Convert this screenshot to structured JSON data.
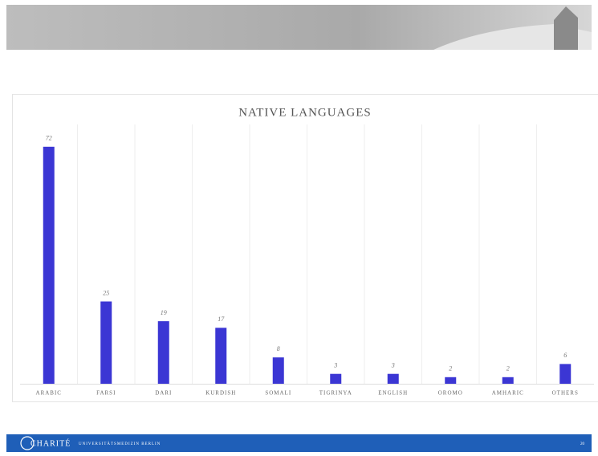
{
  "chart_data": {
    "type": "bar",
    "title": "NATIVE LANGUAGES",
    "categories": [
      "ARABIC",
      "FARSI",
      "DARI",
      "KURDISH",
      "SOMALI",
      "TIGRINYA",
      "ENGLISH",
      "OROMO",
      "AMHARIC",
      "OTHERS"
    ],
    "values": [
      72,
      25,
      19,
      17,
      8,
      3,
      3,
      2,
      2,
      6
    ],
    "color": "#3b36d4",
    "ylim": [
      0,
      80
    ]
  },
  "footer": {
    "logo": "CHARITÉ",
    "institution": "UNIVERSITÄTSMEDIZIN BERLIN",
    "page": "20"
  }
}
